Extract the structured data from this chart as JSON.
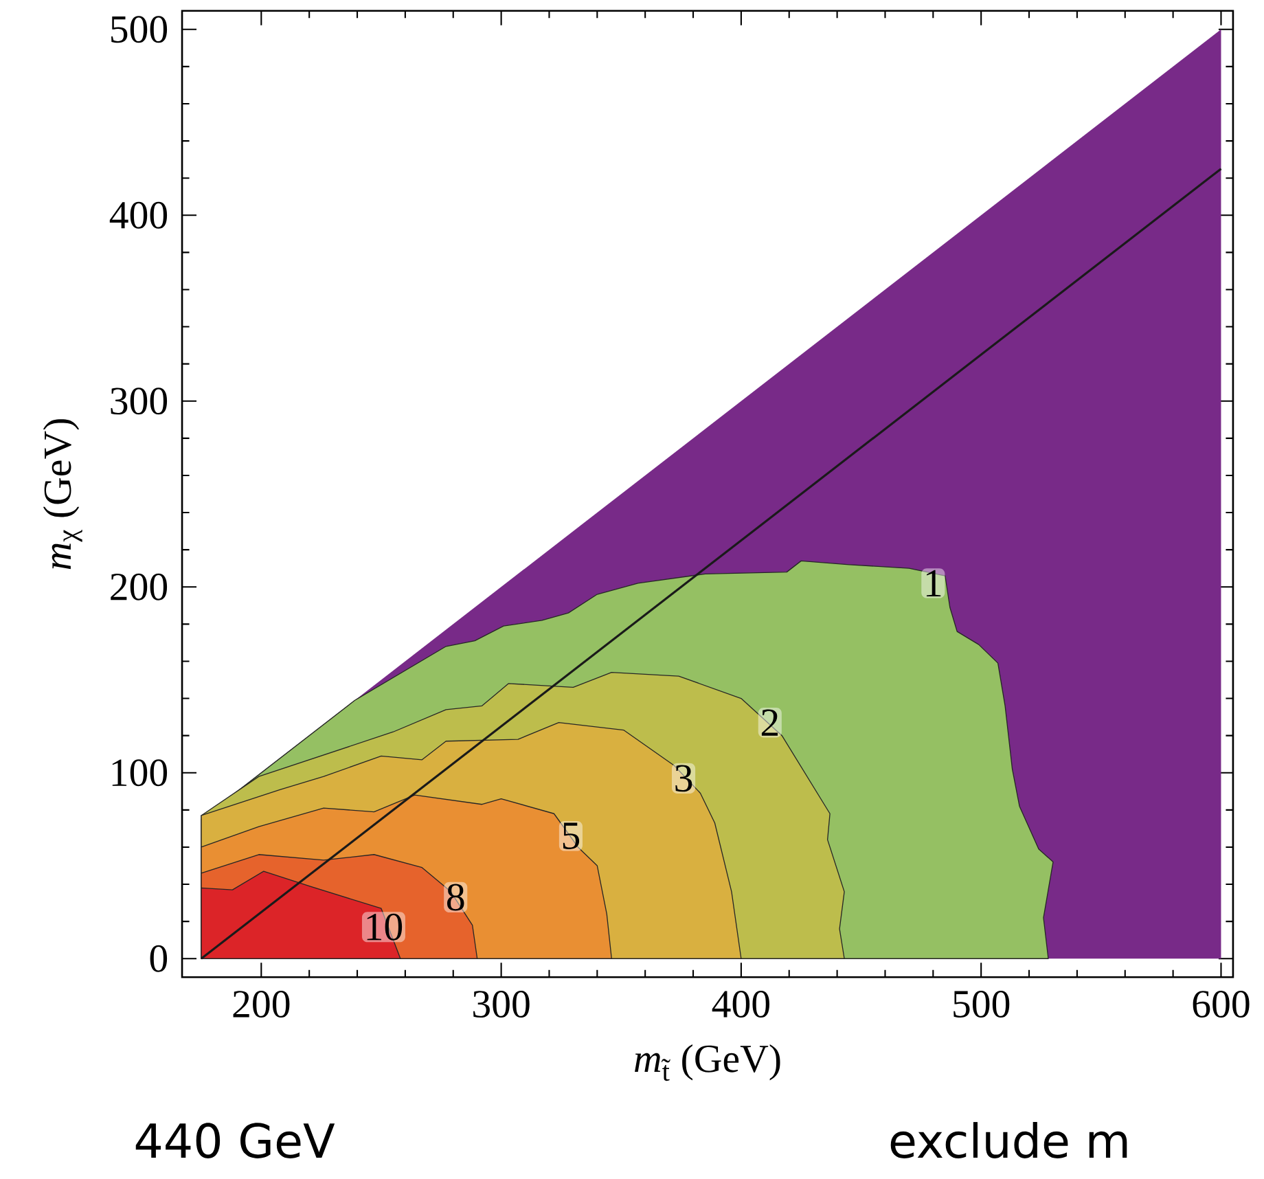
{
  "chart_data": {
    "type": "area",
    "xlabel": "*m*$_{t̃}$ (GeV)",
    "ylabel": "*m*$_{χ}$ (GeV)",
    "xlim": [
      167,
      605
    ],
    "ylim": [
      -10,
      510
    ],
    "xticks": [
      200,
      300,
      400,
      500,
      600
    ],
    "yticks": [
      0,
      100,
      200,
      300,
      400,
      500
    ],
    "series": [
      {
        "color": "#782a88",
        "x": [
          175,
          600
        ],
        "values": [
          75,
          500
        ]
      },
      {
        "color": "#95c063",
        "line_style": "solid",
        "x": [
          175,
          239,
          277,
          289,
          301,
          317,
          328,
          340,
          357,
          385,
          419,
          425,
          445,
          470,
          485,
          487,
          490,
          499,
          507,
          510,
          513,
          516,
          524,
          530,
          526,
          528
        ],
        "values": [
          75,
          139,
          168,
          171,
          179,
          182,
          186,
          196,
          202,
          207,
          208,
          214,
          212,
          210,
          206,
          189,
          176,
          169,
          159,
          136,
          102,
          82,
          59,
          52,
          22,
          0
        ]
      },
      {
        "color": "#bdbd4c",
        "line_style": "solid",
        "x": [
          175,
          199,
          255,
          277,
          292,
          303,
          330,
          346,
          374,
          400,
          417,
          437,
          436,
          443,
          441,
          443
        ],
        "values": [
          77,
          98,
          122,
          134,
          136,
          148,
          146,
          154,
          152,
          140,
          120,
          78,
          64,
          36,
          16,
          0
        ]
      },
      {
        "color": "#d9b040",
        "line_style": "solid",
        "x": [
          175,
          208,
          226,
          250,
          267,
          277,
          307,
          324,
          351,
          372,
          383,
          389,
          396,
          400
        ],
        "values": [
          77,
          91,
          98,
          109,
          107,
          117,
          118,
          127,
          123,
          104,
          89,
          73,
          36,
          0
        ]
      },
      {
        "color": "#e98f33",
        "line_style": "solid",
        "x": [
          175,
          199,
          226,
          247,
          264,
          292,
          300,
          322,
          332,
          340,
          344,
          346
        ],
        "values": [
          60,
          71,
          81,
          79,
          88,
          83,
          86,
          78,
          60,
          50,
          24,
          0
        ]
      },
      {
        "color": "#e6632c",
        "line_style": "solid",
        "x": [
          175,
          199,
          226,
          247,
          267,
          279,
          288,
          290
        ],
        "values": [
          46,
          56,
          53,
          56,
          49,
          36,
          18,
          0
        ]
      },
      {
        "color": "#dc2428",
        "line_style": "solid",
        "x": [
          175,
          188,
          201,
          220,
          250,
          258
        ],
        "values": [
          38,
          37,
          47,
          39,
          27,
          0
        ]
      },
      {
        "type": "line",
        "color": "#1a1a1a",
        "x": [
          175,
          600
        ],
        "values": [
          0,
          425
        ]
      }
    ],
    "annotations": [
      {
        "text": "1",
        "x": 480,
        "y": 202
      },
      {
        "text": "2",
        "x": 412,
        "y": 127
      },
      {
        "text": "3",
        "x": 376,
        "y": 97
      },
      {
        "text": "5",
        "x": 329,
        "y": 66
      },
      {
        "text": "8",
        "x": 281,
        "y": 33
      },
      {
        "text": "10",
        "x": 251,
        "y": 17
      },
      "440 GeV",
      "exclude m"
    ]
  }
}
